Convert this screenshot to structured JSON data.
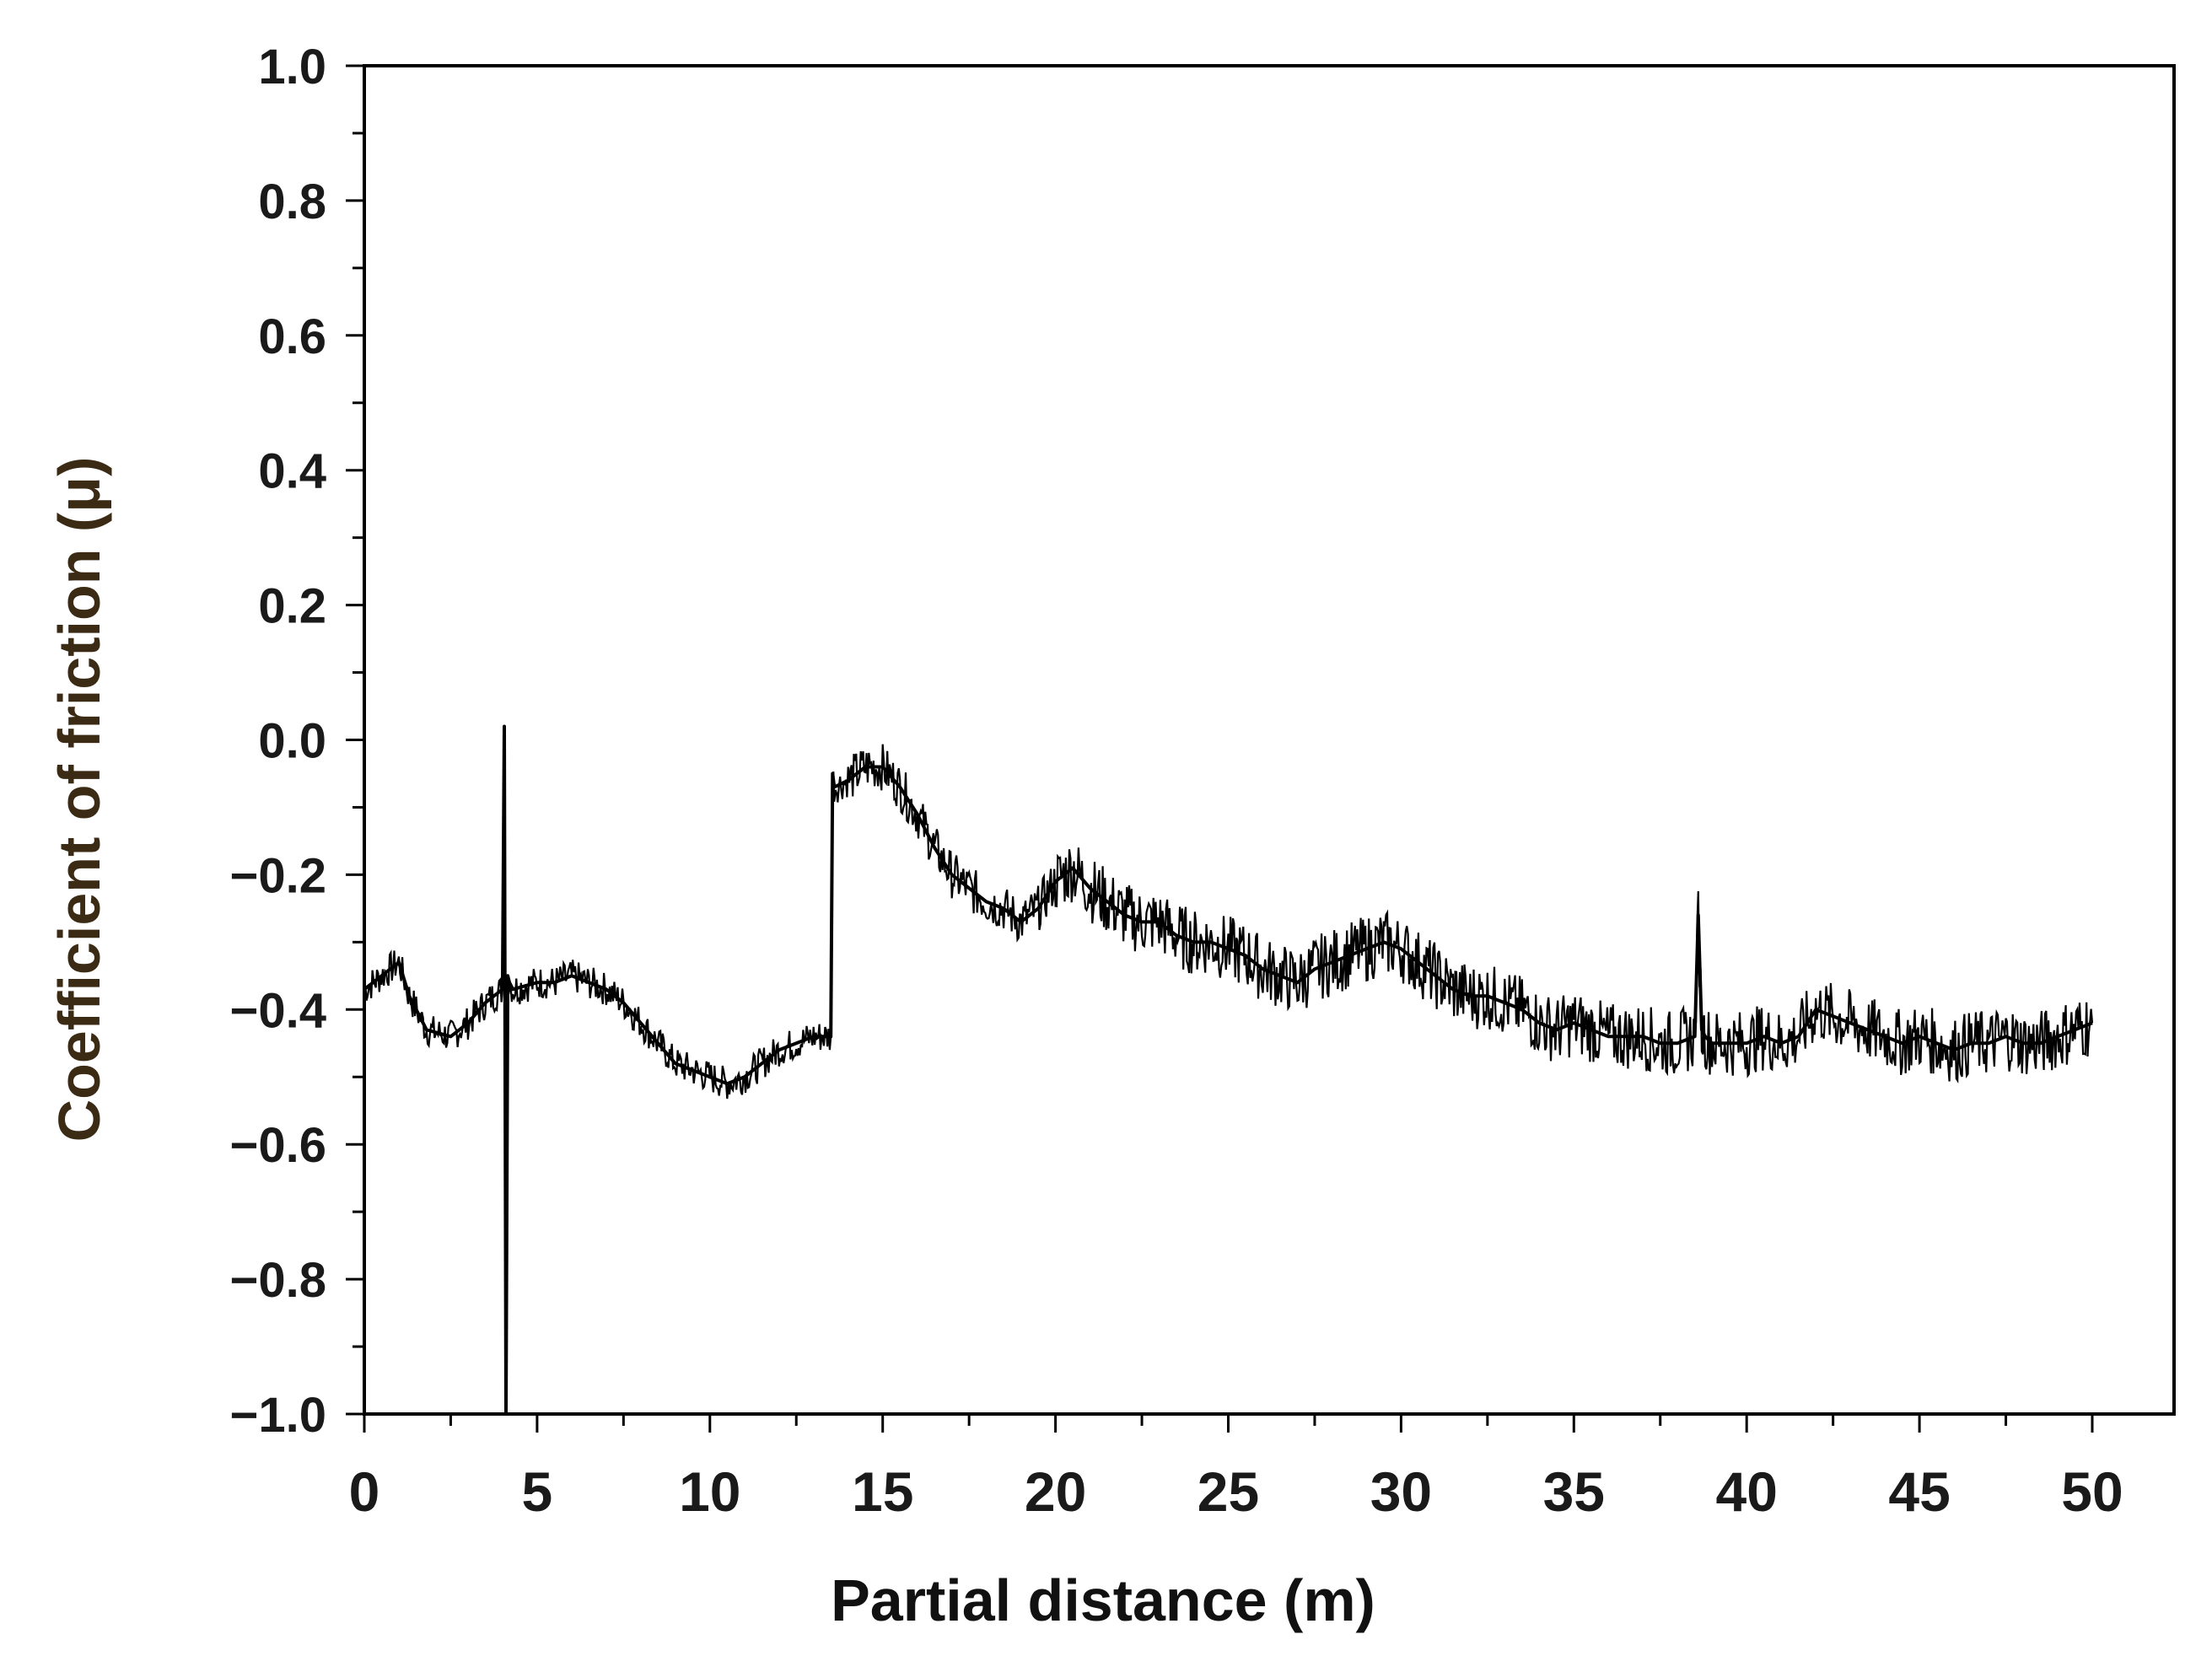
{
  "chart_data": {
    "type": "line",
    "title": "",
    "xlabel": "Partial distance (m)",
    "ylabel": "Coefficient of friction (μ)",
    "xlim": [
      0,
      52
    ],
    "ylim": [
      -1.0,
      1.0
    ],
    "xticks": [
      0,
      5,
      10,
      15,
      20,
      25,
      30,
      35,
      40,
      45,
      50
    ],
    "xtick_labels": [
      "0",
      "5",
      "10",
      "15",
      "20",
      "25",
      "30",
      "35",
      "40",
      "45",
      "50"
    ],
    "yticks": [
      1.0,
      0.8,
      0.6,
      0.4,
      0.2,
      0.0,
      -0.2,
      -0.4,
      -0.6,
      -0.8,
      -1.0
    ],
    "ytick_labels": [
      "1.0",
      "0.8",
      "0.6",
      "0.4",
      "0.2",
      "0.0",
      "−0.2",
      "−0.4",
      "−0.6",
      "−0.8",
      "−1.0"
    ],
    "grid": false,
    "legend": "none",
    "line_color": "#000000",
    "series": [
      {
        "x": [
          0,
          0.5,
          1.0,
          1.3,
          1.8,
          2.5,
          3.0,
          3.5,
          4.0,
          4.05,
          4.1,
          4.15,
          4.2,
          4.3,
          5.0,
          5.5,
          6.0,
          6.5,
          7.0,
          7.5,
          8.0,
          8.5,
          9.0,
          9.5,
          10.0,
          10.5,
          11.0,
          11.5,
          12.0,
          12.5,
          13.0,
          13.5,
          13.55,
          13.6,
          14.0,
          14.5,
          15.0,
          15.5,
          16.0,
          16.5,
          17.0,
          17.5,
          18.0,
          18.5,
          19.0,
          19.5,
          20.0,
          20.5,
          21.0,
          21.5,
          22.0,
          22.5,
          23.0,
          23.5,
          24.0,
          24.5,
          25.0,
          25.5,
          26.0,
          26.5,
          27.0,
          27.5,
          28.0,
          28.5,
          29.0,
          29.5,
          30.0,
          30.5,
          31.0,
          31.5,
          32.0,
          32.5,
          33.0,
          33.5,
          34.0,
          34.5,
          35.0,
          35.5,
          36.0,
          36.5,
          37.0,
          37.5,
          38.0,
          38.5,
          38.6,
          38.7,
          38.8,
          39.0,
          39.5,
          40.0,
          40.5,
          41.0,
          41.5,
          42.0,
          42.5,
          43.0,
          43.5,
          44.0,
          44.5,
          45.0,
          45.5,
          46.0,
          46.5,
          47.0,
          47.5,
          48.0,
          48.5,
          49.0,
          49.5,
          50.0
        ],
        "y": [
          -0.37,
          -0.35,
          -0.33,
          -0.38,
          -0.43,
          -0.44,
          -0.42,
          -0.39,
          -0.37,
          0.02,
          -1.0,
          -0.35,
          -0.36,
          -0.37,
          -0.36,
          -0.36,
          -0.35,
          -0.36,
          -0.37,
          -0.39,
          -0.42,
          -0.45,
          -0.48,
          -0.49,
          -0.5,
          -0.51,
          -0.5,
          -0.48,
          -0.46,
          -0.45,
          -0.44,
          -0.44,
          -0.05,
          -0.07,
          -0.06,
          -0.04,
          -0.04,
          -0.07,
          -0.11,
          -0.16,
          -0.2,
          -0.22,
          -0.24,
          -0.25,
          -0.27,
          -0.25,
          -0.21,
          -0.19,
          -0.22,
          -0.24,
          -0.26,
          -0.27,
          -0.27,
          -0.29,
          -0.3,
          -0.3,
          -0.31,
          -0.32,
          -0.34,
          -0.35,
          -0.36,
          -0.34,
          -0.33,
          -0.32,
          -0.31,
          -0.3,
          -0.31,
          -0.33,
          -0.35,
          -0.37,
          -0.38,
          -0.38,
          -0.39,
          -0.4,
          -0.42,
          -0.43,
          -0.42,
          -0.43,
          -0.44,
          -0.44,
          -0.44,
          -0.45,
          -0.45,
          -0.44,
          -0.26,
          -0.43,
          -0.44,
          -0.45,
          -0.45,
          -0.45,
          -0.44,
          -0.45,
          -0.44,
          -0.4,
          -0.41,
          -0.42,
          -0.43,
          -0.44,
          -0.45,
          -0.44,
          -0.45,
          -0.46,
          -0.45,
          -0.45,
          -0.44,
          -0.45,
          -0.45,
          -0.44,
          -0.43,
          -0.42
        ]
      }
    ]
  }
}
